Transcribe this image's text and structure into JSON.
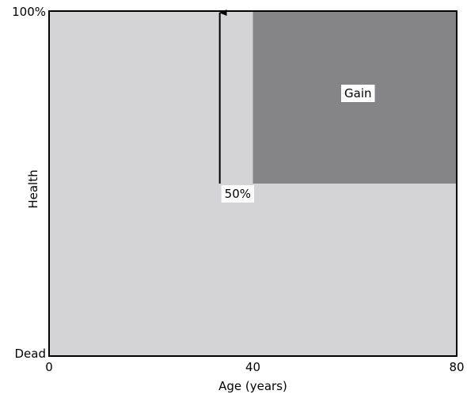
{
  "chart_data": {
    "type": "area",
    "xlabel": "Age (years)",
    "ylabel": "Health",
    "xlim": [
      0,
      80
    ],
    "ylim": [
      0,
      100
    ],
    "x_ticks": [
      {
        "value": 0,
        "label": "0"
      },
      {
        "value": 40,
        "label": "40"
      },
      {
        "value": 80,
        "label": "80"
      }
    ],
    "y_ticks": [
      {
        "value": 0,
        "label": "Dead"
      },
      {
        "value": 100,
        "label": "100%"
      }
    ],
    "regions": [
      {
        "x0": 0,
        "x1": 80,
        "y0": 0,
        "y1": 100,
        "color": "#d4d4d6"
      },
      {
        "label": "Gain",
        "x0": 40,
        "x1": 80,
        "y0": 50,
        "y1": 100,
        "color": "#858587"
      }
    ],
    "annotations": [
      {
        "text": "50%",
        "x": 33.5,
        "y": 50,
        "arrow_to": 100
      }
    ],
    "grid": false
  }
}
